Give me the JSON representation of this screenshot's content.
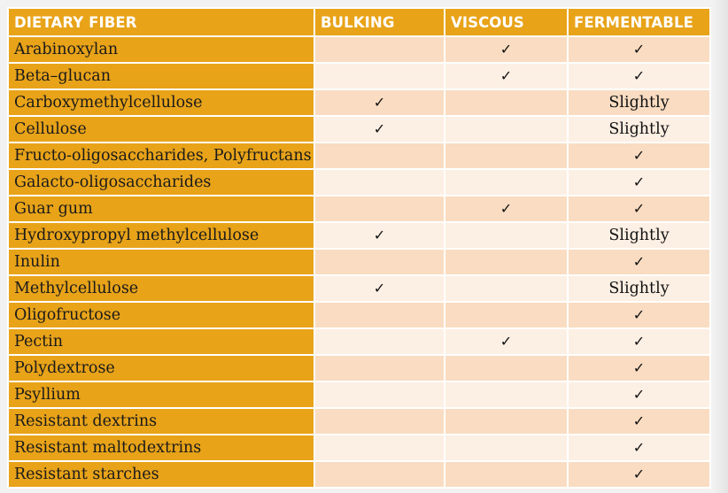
{
  "table": {
    "headers": [
      "DIETARY FIBER",
      "BULKING",
      "VISCOUS",
      "FERMENTABLE"
    ],
    "rows": [
      {
        "fiber": "Arabinoxylan",
        "bulking": "",
        "viscous": "✓",
        "fermentable": "✓"
      },
      {
        "fiber": "Beta–glucan",
        "bulking": "",
        "viscous": "✓",
        "fermentable": "✓"
      },
      {
        "fiber": "Carboxymethylcellulose",
        "bulking": "✓",
        "viscous": "",
        "fermentable": "Slightly"
      },
      {
        "fiber": "Cellulose",
        "bulking": "✓",
        "viscous": "",
        "fermentable": "Slightly"
      },
      {
        "fiber": "Fructo-oligosaccharides, Polyfructans",
        "bulking": "",
        "viscous": "",
        "fermentable": "✓"
      },
      {
        "fiber": "Galacto-oligosaccharides",
        "bulking": "",
        "viscous": "",
        "fermentable": "✓"
      },
      {
        "fiber": "Guar gum",
        "bulking": "",
        "viscous": "✓",
        "fermentable": "✓"
      },
      {
        "fiber": "Hydroxypropyl methylcellulose",
        "bulking": "✓",
        "viscous": "",
        "fermentable": "Slightly"
      },
      {
        "fiber": "Inulin",
        "bulking": "",
        "viscous": "",
        "fermentable": "✓"
      },
      {
        "fiber": "Methylcellulose",
        "bulking": "✓",
        "viscous": "",
        "fermentable": "Slightly"
      },
      {
        "fiber": "Oligofructose",
        "bulking": "",
        "viscous": "",
        "fermentable": "✓"
      },
      {
        "fiber": "Pectin",
        "bulking": "",
        "viscous": "✓",
        "fermentable": "✓"
      },
      {
        "fiber": "Polydextrose",
        "bulking": "",
        "viscous": "",
        "fermentable": "✓"
      },
      {
        "fiber": "Psyllium",
        "bulking": "",
        "viscous": "",
        "fermentable": "✓"
      },
      {
        "fiber": "Resistant dextrins",
        "bulking": "",
        "viscous": "",
        "fermentable": "✓"
      },
      {
        "fiber": "Resistant maltodextrins",
        "bulking": "",
        "viscous": "",
        "fermentable": "✓"
      },
      {
        "fiber": "Resistant starches",
        "bulking": "",
        "viscous": "",
        "fermentable": "✓"
      }
    ]
  },
  "colors": {
    "header_bg": "#e8a319",
    "name_col_bg": "#e8a319",
    "row_light": "#fcefe3",
    "row_dark": "#f9dcc1",
    "header_text": "#ffffff"
  }
}
